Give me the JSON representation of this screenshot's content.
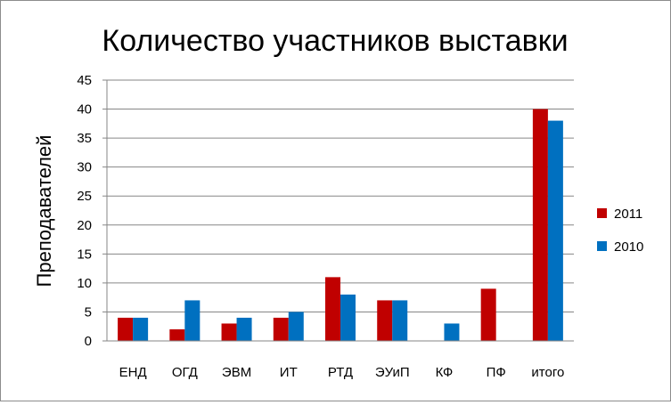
{
  "chart_data": {
    "type": "bar",
    "title": "Количество участников выставки",
    "xlabel": "",
    "ylabel": "Преподавателей",
    "categories": [
      "ЕНД",
      "ОГД",
      "ЭВМ",
      "ИТ",
      "РТД",
      "ЭУиП",
      "КФ",
      "ПФ",
      "итого"
    ],
    "series": [
      {
        "name": "2011",
        "color": "#c00000",
        "values": [
          4,
          2,
          3,
          4,
          11,
          7,
          0,
          9,
          40
        ]
      },
      {
        "name": "2010",
        "color": "#0070c0",
        "values": [
          4,
          7,
          4,
          5,
          8,
          7,
          3,
          0,
          38
        ]
      }
    ],
    "ylim": [
      0,
      45
    ],
    "yticks": [
      0,
      5,
      10,
      15,
      20,
      25,
      30,
      35,
      40,
      45
    ],
    "grid": true,
    "legend_position": "right"
  }
}
